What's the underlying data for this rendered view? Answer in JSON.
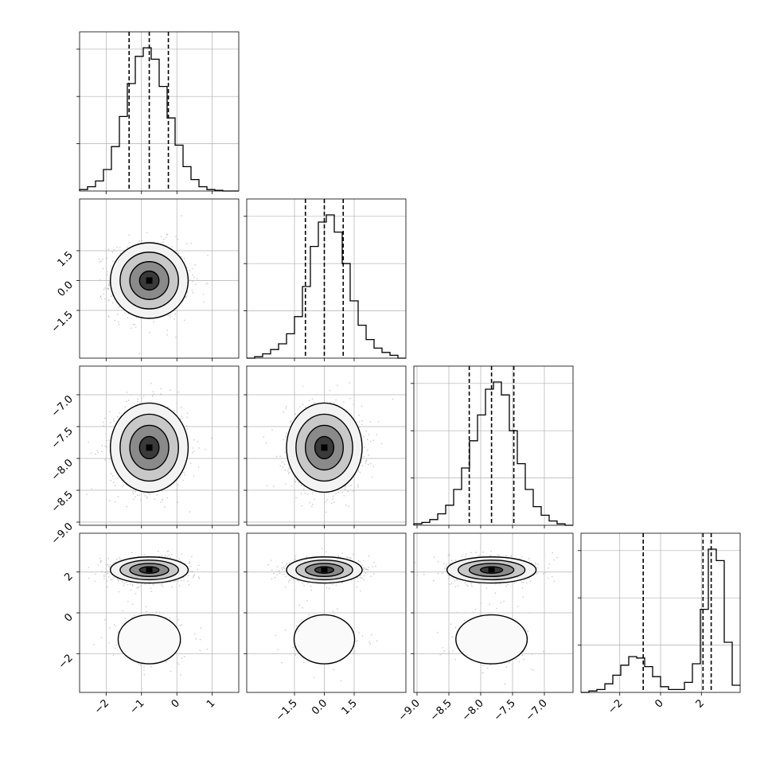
{
  "chart_data": {
    "type": "corner",
    "parameters": [
      {
        "range": [
          -2.75,
          1.75
        ],
        "ticks": [
          -2,
          -1,
          0,
          1
        ],
        "tick_labels": [
          "−2",
          "−1",
          "0",
          "1"
        ],
        "quantiles": [
          -1.35,
          -0.78,
          -0.24
        ],
        "hist": [
          0.01,
          0.03,
          0.07,
          0.15,
          0.31,
          0.52,
          0.75,
          0.94,
          1.0,
          0.92,
          0.73,
          0.51,
          0.32,
          0.17,
          0.08,
          0.03,
          0.01,
          0.005,
          0.0,
          0.0
        ]
      },
      {
        "range": [
          -3.9,
          4.1
        ],
        "ticks": [
          -1.5,
          0.0,
          1.5
        ],
        "tick_labels": [
          "−1.5",
          "0.0",
          "1.5"
        ],
        "quantiles": [
          -0.95,
          0.0,
          0.95
        ],
        "hist": [
          0.0,
          0.01,
          0.03,
          0.06,
          0.1,
          0.17,
          0.29,
          0.5,
          0.78,
          0.95,
          1.0,
          0.88,
          0.66,
          0.4,
          0.23,
          0.13,
          0.07,
          0.04,
          0.02,
          0.0
        ]
      },
      {
        "range": [
          -9.05,
          -6.55
        ],
        "ticks": [
          -9.0,
          -8.5,
          -8.0,
          -7.5,
          -7.0
        ],
        "tick_labels": [
          "−9.0",
          "−8.5",
          "−8.0",
          "−7.5",
          "−7.0"
        ],
        "quantiles": [
          -8.18,
          -7.83,
          -7.48
        ],
        "hist": [
          0.01,
          0.02,
          0.04,
          0.08,
          0.14,
          0.25,
          0.4,
          0.59,
          0.77,
          0.95,
          1.0,
          0.91,
          0.66,
          0.43,
          0.25,
          0.13,
          0.07,
          0.03,
          0.01,
          0.0
        ]
      },
      {
        "range": [
          -3.9,
          3.9
        ],
        "ticks": [
          -2,
          0,
          2
        ],
        "tick_labels": [
          "−2",
          "0",
          "2"
        ],
        "quantiles": [
          -0.85,
          2.08,
          2.48
        ],
        "hist": [
          0.0,
          0.01,
          0.02,
          0.06,
          0.12,
          0.19,
          0.25,
          0.24,
          0.18,
          0.11,
          0.04,
          0.02,
          0.02,
          0.07,
          0.2,
          0.58,
          1.0,
          0.92,
          0.35,
          0.05
        ]
      }
    ],
    "modes_param4": [
      {
        "center": 2.1,
        "sigma": 0.32,
        "weight": 0.8
      },
      {
        "center": -1.3,
        "sigma": 0.75,
        "weight": 0.2
      }
    ],
    "param_means": [
      -0.78,
      0.0,
      -7.83
    ],
    "param_sigmas": [
      0.55,
      0.95,
      0.35
    ],
    "quantile_levels": [
      0.16,
      0.5,
      0.84
    ],
    "contour_levels_sigma": [
      0.5,
      1.0,
      1.5,
      2.0
    ],
    "grid": true,
    "colors": {
      "lines": "#000000",
      "grid": "#b0b0b0",
      "points": "#c8c8c8"
    }
  }
}
